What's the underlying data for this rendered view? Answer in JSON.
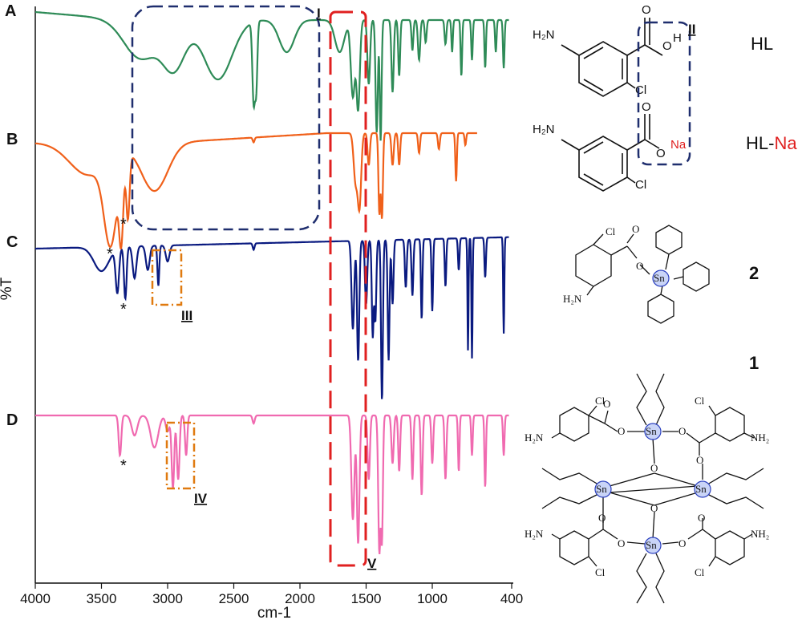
{
  "chart_data": {
    "type": "line",
    "title": "",
    "xlabel": "cm-1",
    "ylabel": "%T",
    "xlim": [
      4000,
      400
    ],
    "x_reversed": true,
    "x_ticks": [
      "4000",
      "3500",
      "3000",
      "2500",
      "2000",
      "1500",
      "1000",
      "400"
    ],
    "grid": false,
    "series": [
      {
        "name": "A",
        "color": "#2e8b57",
        "label": "HL"
      },
      {
        "name": "B",
        "color": "#f0601a",
        "label": "HL-Na"
      },
      {
        "name": "C",
        "color": "#0a1a80",
        "label": "2"
      },
      {
        "name": "D",
        "color": "#f06ab0",
        "label": "1"
      }
    ],
    "regions": [
      {
        "label": "I",
        "x_range": [
          3250,
          1800
        ],
        "color": "#1f2e6e",
        "style": "dashed"
      },
      {
        "label": "III",
        "x_range": [
          3100,
          2850
        ],
        "color": "#e07a10",
        "style": "dashdot"
      },
      {
        "label": "IV",
        "x_range": [
          3010,
          2820
        ],
        "color": "#e07a10",
        "style": "dashdot"
      },
      {
        "label": "V",
        "x_range": [
          1740,
          1520
        ],
        "color": "#e02020",
        "style": "dashed"
      }
    ],
    "annotations": [
      "*",
      "*",
      "*",
      "*",
      "*"
    ]
  },
  "structures": {
    "II_label": "II",
    "HL_label": "HL",
    "HLNa_label_a": "HL-",
    "HLNa_label_b": "Na",
    "compound2_label": "2",
    "compound1_label": "1",
    "atoms": {
      "H2N": "H₂N",
      "NH2": "NH₂",
      "O": "O",
      "H": "H",
      "Na": "Na",
      "Cl": "Cl",
      "Sn": "Sn"
    }
  },
  "colors": {
    "accent_red": "#e02020",
    "box_navy": "#1f2e6e",
    "box_orange": "#e07a10"
  }
}
